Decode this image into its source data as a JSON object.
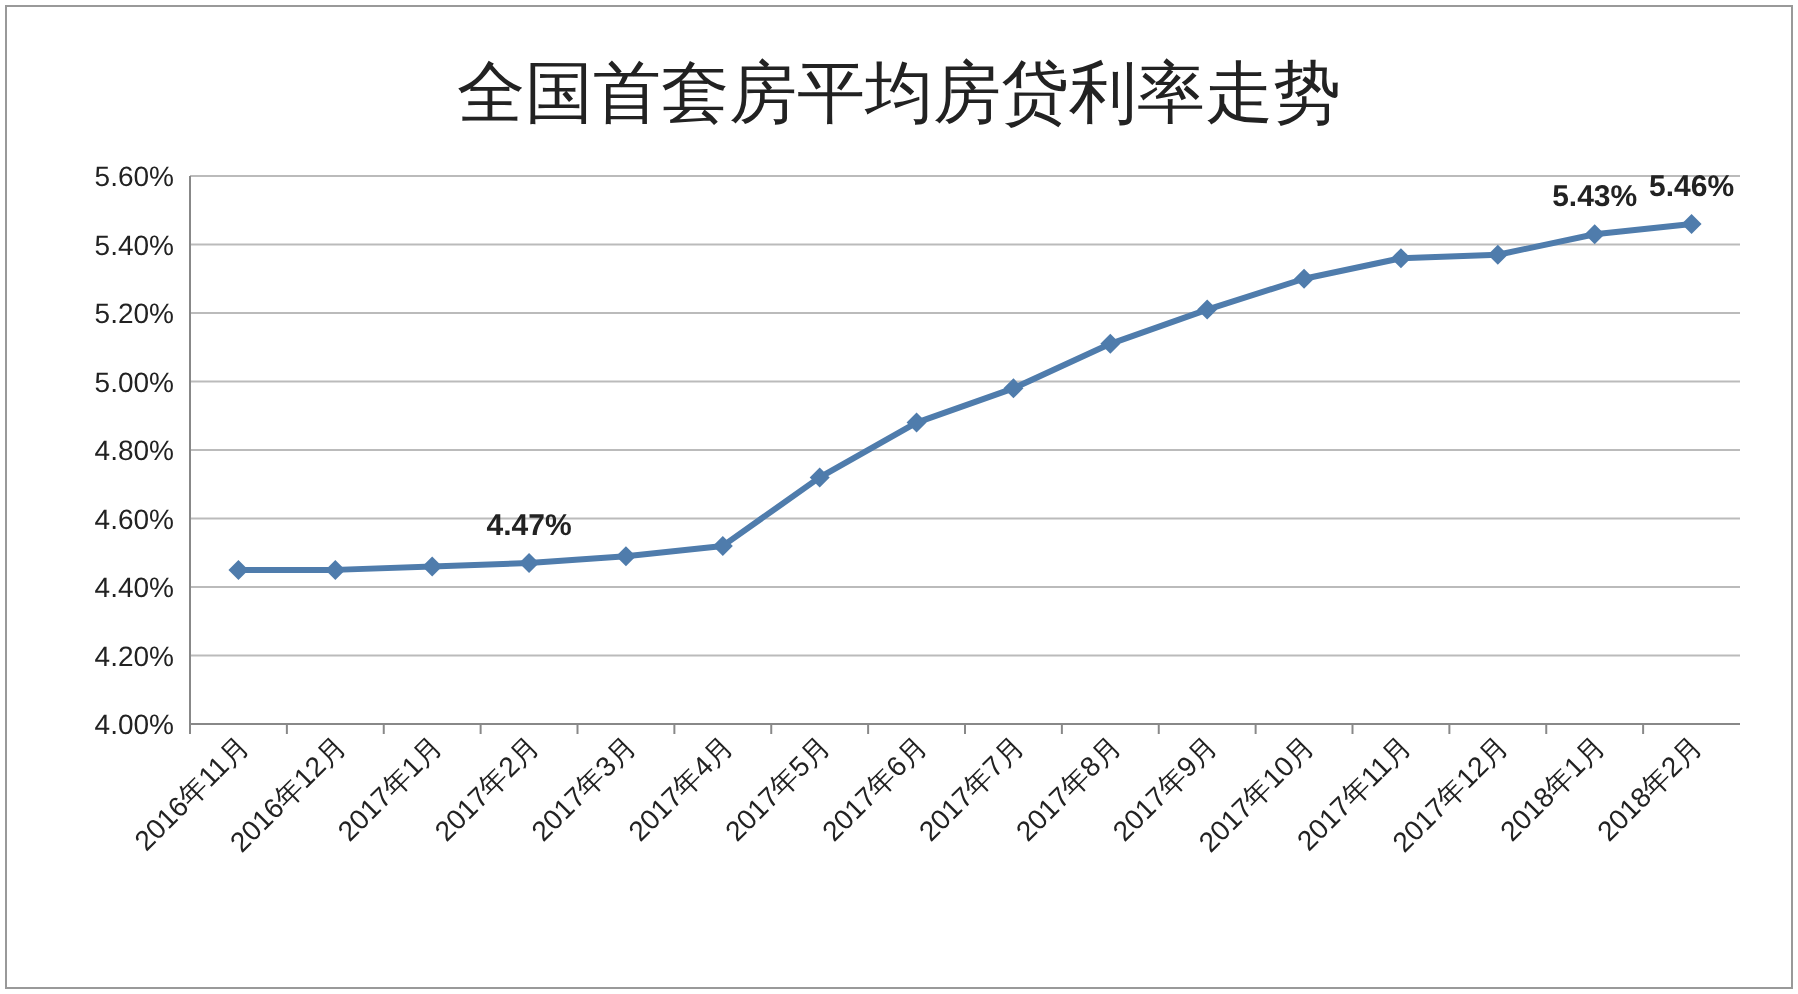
{
  "chart_data": {
    "type": "line",
    "title": "全国首套房平均房贷利率走势",
    "categories": [
      "2016年11月",
      "2016年12月",
      "2017年1月",
      "2017年2月",
      "2017年3月",
      "2017年4月",
      "2017年5月",
      "2017年6月",
      "2017年7月",
      "2017年8月",
      "2017年9月",
      "2017年10月",
      "2017年11月",
      "2017年12月",
      "2018年1月",
      "2018年2月"
    ],
    "series": [
      {
        "color": "#4f7cac",
        "values": [
          4.45,
          4.45,
          4.46,
          4.47,
          4.49,
          4.52,
          4.72,
          4.88,
          4.98,
          5.11,
          5.21,
          5.3,
          5.36,
          5.37,
          5.43,
          5.46
        ],
        "value_labels": [
          null,
          null,
          null,
          "4.47%",
          null,
          null,
          null,
          null,
          null,
          null,
          null,
          null,
          null,
          null,
          "5.43%",
          "5.46%"
        ]
      }
    ],
    "ylim": [
      4.0,
      5.6
    ],
    "yticks": [
      {
        "value": 4.0,
        "label": "4.00%"
      },
      {
        "value": 4.2,
        "label": "4.20%"
      },
      {
        "value": 4.4,
        "label": "4.40%"
      },
      {
        "value": 4.6,
        "label": "4.60%"
      },
      {
        "value": 4.8,
        "label": "4.80%"
      },
      {
        "value": 5.0,
        "label": "5.00%"
      },
      {
        "value": 5.2,
        "label": "5.20%"
      },
      {
        "value": 5.4,
        "label": "5.40%"
      },
      {
        "value": 5.6,
        "label": "5.60%"
      }
    ],
    "grid": "y",
    "marker": "diamond",
    "line_style": "solid"
  }
}
